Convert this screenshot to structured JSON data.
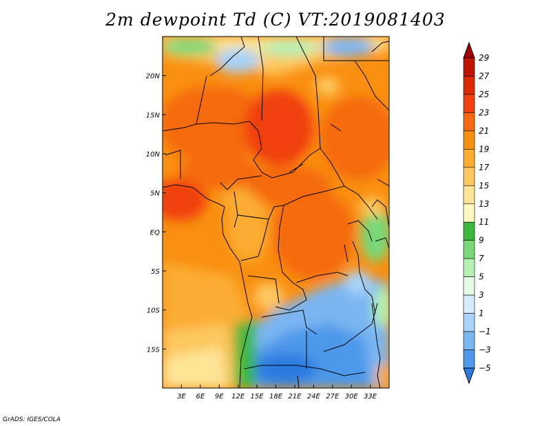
{
  "title": "2m dewpoint Td (C) VT:2019081403",
  "credit": "GrADS: IGES/COLA",
  "map": {
    "lon_range": [
      0,
      36
    ],
    "lat_range": [
      -20,
      25
    ],
    "x_ticks": [
      {
        "value": 3,
        "label": "3E"
      },
      {
        "value": 6,
        "label": "6E"
      },
      {
        "value": 9,
        "label": "9E"
      },
      {
        "value": 12,
        "label": "12E"
      },
      {
        "value": 15,
        "label": "15E"
      },
      {
        "value": 18,
        "label": "18E"
      },
      {
        "value": 21,
        "label": "21E"
      },
      {
        "value": 24,
        "label": "24E"
      },
      {
        "value": 27,
        "label": "27E"
      },
      {
        "value": 30,
        "label": "30E"
      },
      {
        "value": 33,
        "label": "33E"
      }
    ],
    "y_ticks": [
      {
        "value": 20,
        "label": "20N"
      },
      {
        "value": 15,
        "label": "15N"
      },
      {
        "value": 10,
        "label": "10N"
      },
      {
        "value": 5,
        "label": "5N"
      },
      {
        "value": 0,
        "label": "EQ"
      },
      {
        "value": -5,
        "label": "5S"
      },
      {
        "value": -10,
        "label": "10S"
      },
      {
        "value": -15,
        "label": "15S"
      }
    ]
  },
  "colorbar": {
    "labels": [
      "29",
      "27",
      "25",
      "23",
      "21",
      "19",
      "17",
      "15",
      "13",
      "11",
      "9",
      "7",
      "5",
      "3",
      "1",
      "−1",
      "−3",
      "−5"
    ],
    "colors": [
      "#a00000",
      "#c01500",
      "#dc2a00",
      "#f04010",
      "#f56a10",
      "#f98f10",
      "#fbac30",
      "#fdc860",
      "#fde598",
      "#fff8c0",
      "#3cb83c",
      "#78d878",
      "#b4f0b4",
      "#e6fae6",
      "#d4ecfc",
      "#a8d2f8",
      "#7ab6f2",
      "#4d98ea",
      "#2a7ae0"
    ]
  }
}
